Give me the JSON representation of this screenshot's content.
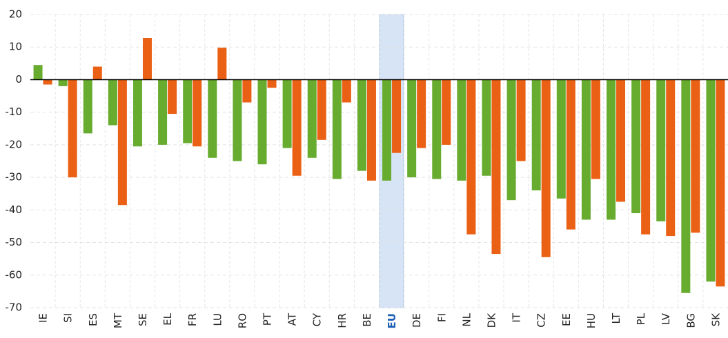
{
  "chart_data": {
    "type": "bar",
    "categories": [
      "IE",
      "SI",
      "ES",
      "MT",
      "SE",
      "EL",
      "FR",
      "LU",
      "RO",
      "PT",
      "AT",
      "CY",
      "HR",
      "BE",
      "EU",
      "DE",
      "FI",
      "NL",
      "DK",
      "IT",
      "CZ",
      "EE",
      "HU",
      "LT",
      "PL",
      "LV",
      "BG",
      "SK"
    ],
    "series": [
      {
        "color": "#67ab2f",
        "values": [
          4.5,
          -2,
          -16.5,
          -14,
          -20.5,
          -20,
          -19.5,
          -24,
          -25,
          -26,
          -21,
          -24,
          -30.5,
          -28,
          -31,
          -30,
          -30.5,
          -31,
          -29.5,
          -37,
          -34,
          -36.5,
          -43,
          -43,
          -41,
          -43.5,
          -65.5,
          -62
        ]
      },
      {
        "color": "#ea6014",
        "values": [
          -1.5,
          -30,
          4,
          -38.5,
          12.8,
          -10.5,
          -20.5,
          9.8,
          -7,
          -2.5,
          -29.5,
          -18.5,
          -7,
          -31,
          -22.5,
          -21,
          -20,
          -47.5,
          -53.5,
          -25,
          -54.5,
          -46,
          -30.5,
          -37.5,
          -47.5,
          -48,
          -47,
          -63.5
        ]
      }
    ],
    "highlight": "EU",
    "ylim": [
      -70,
      20
    ],
    "yticks": [
      -70,
      -60,
      -50,
      -40,
      -30,
      -20,
      -10,
      0,
      10,
      20
    ],
    "grid": true
  }
}
